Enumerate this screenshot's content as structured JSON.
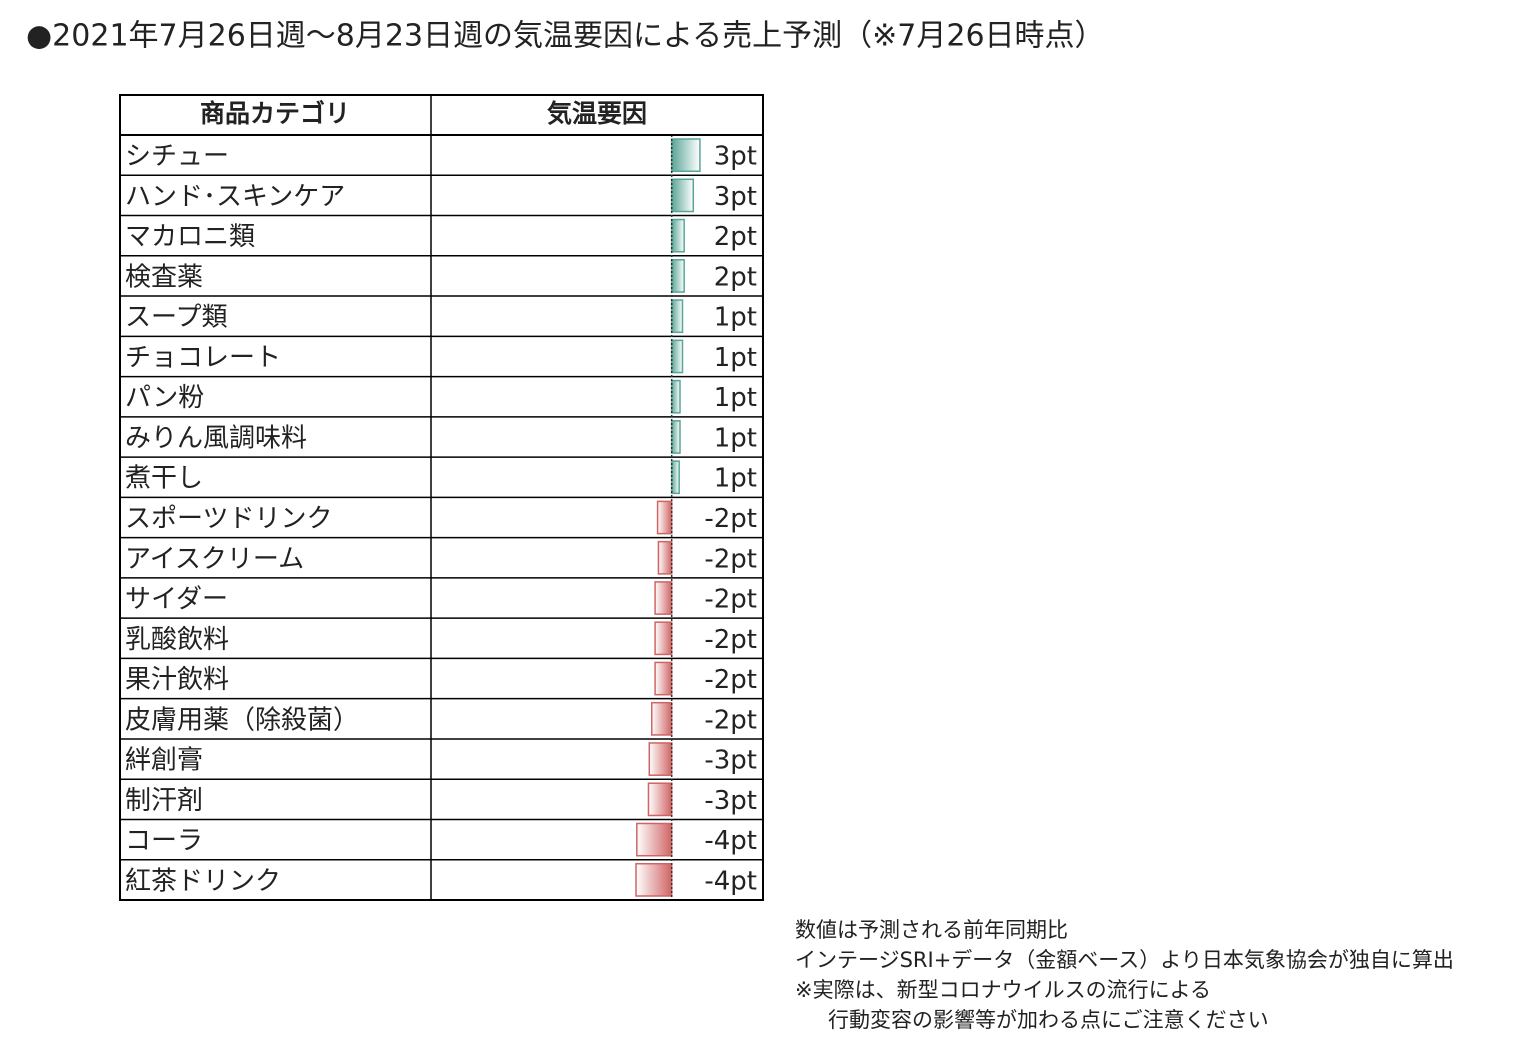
{
  "chart_data": {
    "type": "table-bar",
    "title": "●2021年7月26日週～8月23日週の気温要因による売上予測（※7月26日時点）",
    "columns": [
      "商品カテゴリ",
      "気温要因"
    ],
    "categories": [
      "シチュー",
      "ハンド･スキンケア",
      "マカロニ類",
      "検査薬",
      "スープ類",
      "チョコレート",
      "パン粉",
      "みりん風調味料",
      "煮干し",
      "スポーツドリンク",
      "アイスクリーム",
      "サイダー",
      "乳酸飲料",
      "果汁飲料",
      "皮膚用薬（除殺菌）",
      "絆創膏",
      "制汗剤",
      "コーラ",
      "紅茶ドリンク"
    ],
    "values": [
      3.4,
      2.6,
      1.5,
      1.5,
      1.3,
      1.3,
      1.0,
      1.0,
      0.9,
      -1.7,
      -1.6,
      -2.0,
      -2.0,
      -2.0,
      -2.4,
      -2.7,
      -2.8,
      -4.2,
      -4.3
    ],
    "value_labels": [
      "3pt",
      "3pt",
      "2pt",
      "2pt",
      "1pt",
      "1pt",
      "1pt",
      "1pt",
      "1pt",
      "-2pt",
      "-2pt",
      "-2pt",
      "-2pt",
      "-2pt",
      "-2pt",
      "-3pt",
      "-3pt",
      "-4pt",
      "-4pt"
    ],
    "xlim": [
      -29,
      11
    ],
    "positive_color": "#5aa597",
    "negative_color": "#d06464",
    "notes": [
      "数値は予測される前年同期比",
      "インテージSRI+データ（金額ベース）より日本気象協会が独自に算出",
      "※実際は、新型コロナウイルスの流行による",
      "行動変容の影響等が加わる点にご注意ください"
    ]
  }
}
